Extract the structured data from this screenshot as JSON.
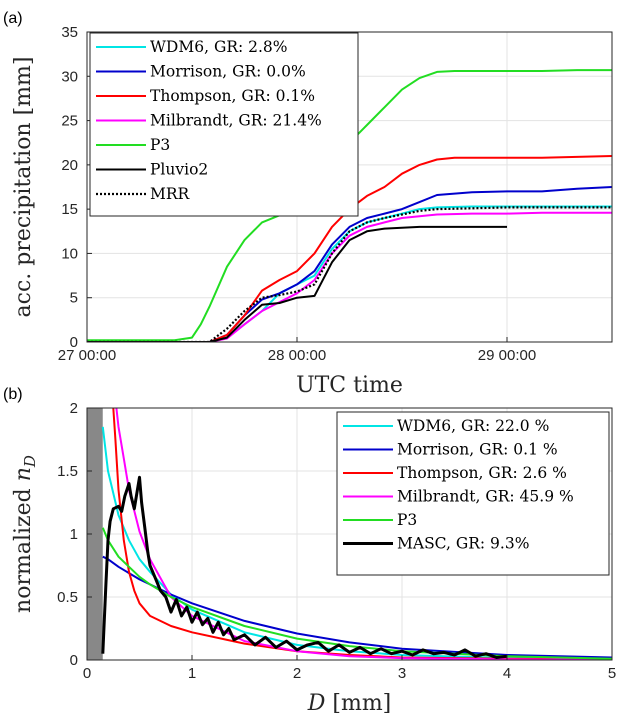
{
  "chart_data": [
    {
      "panel_label": "(a)",
      "type": "line",
      "xlabel": "UTC time",
      "ylabel": "acc. precipitation [mm]",
      "x_unit": "hours after 27 00:00",
      "xlim": [
        0,
        60
      ],
      "ylim": [
        0,
        35
      ],
      "x_ticks": [
        0,
        24,
        48
      ],
      "x_tick_labels": [
        "27 00:00",
        "28 00:00",
        "29 00:00"
      ],
      "y_ticks": [
        0,
        5,
        10,
        15,
        20,
        25,
        30,
        35
      ],
      "y_tick_labels": [
        "0",
        "5",
        "10",
        "15",
        "20",
        "25",
        "30",
        "35"
      ],
      "grid": true,
      "legend_position": "top-left",
      "series": [
        {
          "name": "WDM6, GR: 2.8%",
          "color": "#00e5e5",
          "style": "solid",
          "x": [
            0,
            10,
            14,
            16,
            18,
            20,
            22,
            24,
            26,
            28,
            30,
            32,
            34,
            36,
            38,
            40,
            44,
            48,
            52,
            56,
            60
          ],
          "y": [
            0,
            0,
            0,
            0.5,
            2,
            3.5,
            5.5,
            6.5,
            7.5,
            10.5,
            12.5,
            13.5,
            14,
            14.5,
            15,
            15.2,
            15.3,
            15.3,
            15.3,
            15.3,
            15.3
          ]
        },
        {
          "name": "Morrison, GR: 0.0%",
          "color": "#0000cc",
          "style": "solid",
          "x": [
            0,
            10,
            14,
            16,
            18,
            20,
            22,
            24,
            26,
            28,
            30,
            32,
            34,
            36,
            38,
            40,
            44,
            48,
            52,
            56,
            60
          ],
          "y": [
            0,
            0,
            0,
            0.8,
            3,
            4.8,
            5.5,
            6.5,
            8,
            11,
            13,
            14,
            14.5,
            15,
            15.8,
            16.6,
            16.9,
            17,
            17,
            17.3,
            17.5
          ]
        },
        {
          "name": "Thompson, GR: 0.1%",
          "color": "#ff0000",
          "style": "solid",
          "x": [
            0,
            10,
            14,
            16,
            18,
            20,
            22,
            24,
            26,
            28,
            30,
            32,
            34,
            36,
            38,
            40,
            42,
            44,
            48,
            52,
            56,
            60
          ],
          "y": [
            0,
            0,
            0,
            0.8,
            3,
            5.8,
            7,
            8,
            10,
            13,
            15,
            16.5,
            17.5,
            19,
            20,
            20.6,
            20.8,
            20.8,
            20.8,
            20.8,
            20.9,
            21
          ]
        },
        {
          "name": "Milbrandt, GR: 21.4%",
          "color": "#ff00ff",
          "style": "solid",
          "x": [
            0,
            10,
            14,
            16,
            18,
            20,
            22,
            24,
            26,
            28,
            30,
            32,
            34,
            36,
            38,
            40,
            44,
            48,
            52,
            56,
            60
          ],
          "y": [
            0,
            0,
            0,
            0.4,
            2,
            3.5,
            4.5,
            5.5,
            7,
            10,
            12,
            13,
            13.5,
            14,
            14.2,
            14.4,
            14.5,
            14.5,
            14.6,
            14.6,
            14.6
          ]
        },
        {
          "name": "P3",
          "color": "#22dd22",
          "style": "solid",
          "x": [
            0,
            5,
            10,
            12,
            13,
            14,
            16,
            18,
            20,
            22,
            24,
            26,
            28,
            30,
            32,
            34,
            36,
            38,
            40,
            42,
            44,
            48,
            52,
            56,
            60
          ],
          "y": [
            0.2,
            0.2,
            0.2,
            0.5,
            2,
            4,
            8.5,
            11.5,
            13.5,
            14.3,
            15,
            18.5,
            20.5,
            22.5,
            24.5,
            26.5,
            28.5,
            29.8,
            30.5,
            30.6,
            30.6,
            30.6,
            30.6,
            30.7,
            30.7
          ]
        },
        {
          "name": "Pluvio2",
          "color": "#000000",
          "style": "solid",
          "x": [
            0,
            10,
            14,
            16,
            18,
            20,
            22,
            24,
            26,
            28,
            30,
            32,
            34,
            36,
            38,
            40,
            44,
            48
          ],
          "y": [
            0,
            0,
            0,
            0.5,
            2.5,
            4.2,
            4.4,
            5,
            5.2,
            9,
            11.5,
            12.5,
            12.8,
            12.9,
            13,
            13,
            13,
            13
          ]
        },
        {
          "name": "MRR",
          "color": "#000000",
          "style": "dotted",
          "x": [
            0,
            10,
            14,
            16,
            18,
            20,
            22,
            24,
            26,
            28,
            30,
            32,
            34,
            36,
            38,
            40,
            44,
            48,
            52,
            56,
            60
          ],
          "y": [
            0,
            0,
            0,
            1.5,
            3.5,
            5,
            5.3,
            5.7,
            6.5,
            10,
            12.5,
            13.5,
            14,
            14.4,
            14.8,
            15,
            15.1,
            15.2,
            15.2,
            15.2,
            15.2
          ]
        }
      ]
    },
    {
      "panel_label": "(b)",
      "type": "line",
      "xlabel": "D [mm]",
      "ylabel": "normalized n_D",
      "xlim": [
        0,
        5
      ],
      "ylim": [
        0,
        2
      ],
      "x_ticks": [
        0,
        1,
        2,
        3,
        4,
        5
      ],
      "x_tick_labels": [
        "0",
        "1",
        "2",
        "3",
        "4",
        "5"
      ],
      "y_ticks": [
        0,
        0.5,
        1,
        1.5,
        2
      ],
      "y_tick_labels": [
        "0",
        "0.5",
        "1",
        "1.5",
        "2"
      ],
      "grid": true,
      "legend_position": "top-right",
      "shaded_region": {
        "x": [
          0,
          0.15
        ],
        "color": "#888888"
      },
      "series": [
        {
          "name": "WDM6, GR: 22.0 %",
          "color": "#00e5e5",
          "style": "solid",
          "x": [
            0.15,
            0.2,
            0.3,
            0.4,
            0.5,
            0.6,
            0.8,
            1,
            1.5,
            2,
            2.5,
            3,
            4,
            5
          ],
          "y": [
            1.85,
            1.5,
            1.15,
            0.95,
            0.8,
            0.7,
            0.52,
            0.4,
            0.22,
            0.12,
            0.07,
            0.04,
            0.015,
            0.005
          ]
        },
        {
          "name": "Morrison, GR: 0.1 %",
          "color": "#0000cc",
          "style": "solid",
          "x": [
            0.15,
            0.2,
            0.3,
            0.4,
            0.5,
            0.6,
            0.8,
            1,
            1.5,
            2,
            2.5,
            3,
            4,
            5
          ],
          "y": [
            0.82,
            0.8,
            0.74,
            0.69,
            0.64,
            0.6,
            0.52,
            0.45,
            0.31,
            0.21,
            0.14,
            0.09,
            0.04,
            0.02
          ]
        },
        {
          "name": "Thompson, GR: 2.6 %",
          "color": "#ff0000",
          "style": "solid",
          "x": [
            0.25,
            0.27,
            0.3,
            0.35,
            0.4,
            0.45,
            0.5,
            0.6,
            0.8,
            1,
            1.5,
            2,
            2.5,
            3,
            4,
            5
          ],
          "y": [
            2,
            1.75,
            1.35,
            0.95,
            0.7,
            0.55,
            0.45,
            0.35,
            0.27,
            0.22,
            0.13,
            0.07,
            0.04,
            0.02,
            0.01,
            0.005
          ]
        },
        {
          "name": "Milbrandt, GR: 45.9 %",
          "color": "#ff00ff",
          "style": "solid",
          "x": [
            0.28,
            0.3,
            0.35,
            0.4,
            0.5,
            0.6,
            0.8,
            1,
            1.5,
            2,
            2.5,
            3,
            4,
            5
          ],
          "y": [
            2,
            1.85,
            1.6,
            1.35,
            1.02,
            0.8,
            0.5,
            0.35,
            0.15,
            0.07,
            0.03,
            0.015,
            0.005,
            0.002
          ]
        },
        {
          "name": "P3",
          "color": "#22dd22",
          "style": "solid",
          "x": [
            0.15,
            0.2,
            0.3,
            0.4,
            0.5,
            0.6,
            0.8,
            1,
            1.5,
            2,
            2.5,
            3,
            4,
            5
          ],
          "y": [
            1.05,
            0.95,
            0.82,
            0.74,
            0.66,
            0.6,
            0.5,
            0.42,
            0.27,
            0.17,
            0.11,
            0.07,
            0.03,
            0.01
          ]
        },
        {
          "name": "MASC, GR: 9.3%",
          "color": "#000000",
          "style": "solid",
          "width": 3,
          "x": [
            0.15,
            0.18,
            0.2,
            0.22,
            0.25,
            0.3,
            0.33,
            0.36,
            0.4,
            0.42,
            0.45,
            0.48,
            0.5,
            0.52,
            0.55,
            0.58,
            0.6,
            0.65,
            0.7,
            0.75,
            0.8,
            0.85,
            0.9,
            0.95,
            1,
            1.05,
            1.1,
            1.15,
            1.2,
            1.25,
            1.3,
            1.35,
            1.4,
            1.5,
            1.6,
            1.7,
            1.8,
            1.9,
            2,
            2.1,
            2.2,
            2.3,
            2.4,
            2.5,
            2.6,
            2.7,
            2.8,
            2.9,
            3,
            3.1,
            3.2,
            3.3,
            3.4,
            3.5,
            3.6,
            3.7,
            3.8,
            3.9,
            4
          ],
          "y": [
            0.05,
            0.6,
            0.95,
            1.1,
            1.2,
            1.22,
            1.18,
            1.3,
            1.4,
            1.3,
            1.2,
            1.35,
            1.45,
            1.25,
            1.05,
            0.85,
            0.75,
            0.65,
            0.55,
            0.5,
            0.38,
            0.48,
            0.35,
            0.42,
            0.3,
            0.38,
            0.28,
            0.33,
            0.22,
            0.3,
            0.2,
            0.25,
            0.16,
            0.2,
            0.12,
            0.18,
            0.1,
            0.15,
            0.08,
            0.12,
            0.14,
            0.07,
            0.12,
            0.06,
            0.1,
            0.05,
            0.09,
            0.05,
            0.07,
            0.04,
            0.08,
            0.05,
            0.06,
            0.04,
            0.08,
            0.03,
            0.05,
            0.02,
            0.03
          ]
        }
      ]
    }
  ]
}
